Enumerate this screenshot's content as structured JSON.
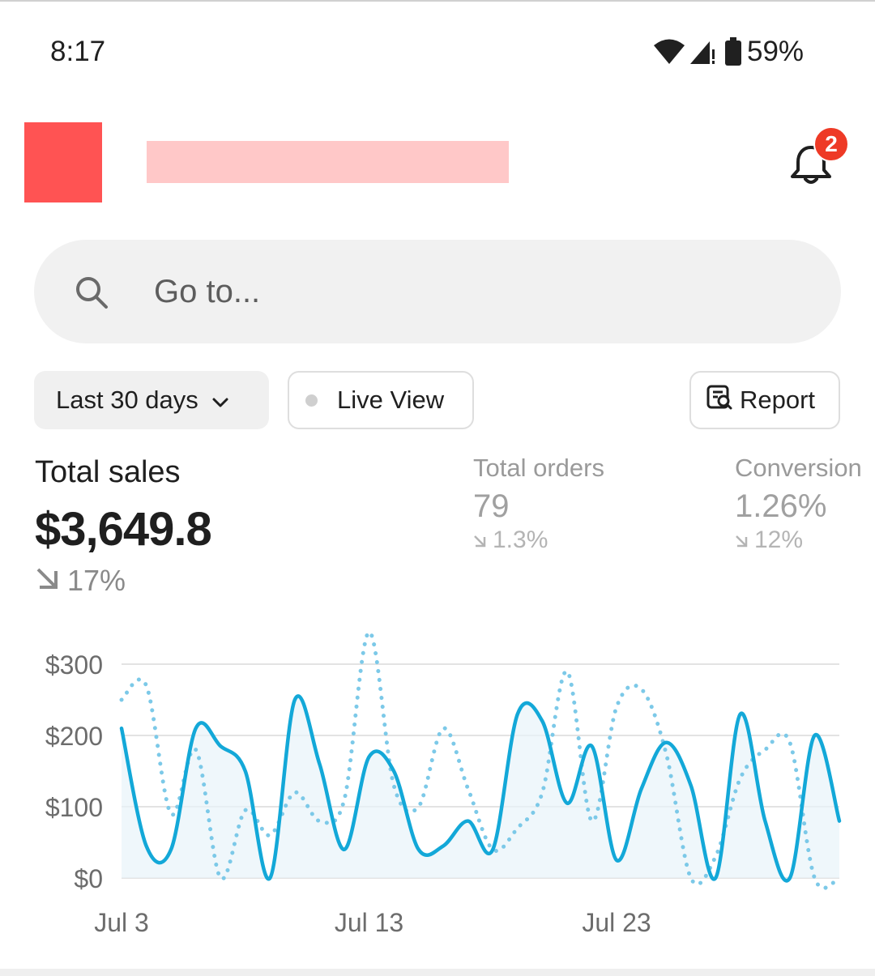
{
  "status_bar": {
    "time": "8:17",
    "battery": "59%",
    "icons": [
      "wifi-icon",
      "signal-icon",
      "battery-icon"
    ]
  },
  "header": {
    "notification_count": "2",
    "icons": [
      "bell-icon"
    ],
    "logo_color": "#ff5353",
    "store_name_redaction_color": "#ffc8c8"
  },
  "search": {
    "placeholder": "Go to..."
  },
  "filters": {
    "range_label": "Last 30 days",
    "live_label": "Live View",
    "report_label": "Report"
  },
  "metrics": {
    "total_sales": {
      "label": "Total sales",
      "value": "$3,649.8",
      "change": "17%"
    },
    "total_orders": {
      "label": "Total orders",
      "value": "79",
      "change": "1.3%"
    },
    "conversion": {
      "label": "Conversion",
      "value": "1.26%",
      "change": "12%"
    }
  },
  "colors": {
    "current_series": "#13a8d8",
    "previous_series": "#7cc9e8",
    "badge": "#ee3a26"
  },
  "chart_data": {
    "type": "line",
    "ylim": [
      0,
      300
    ],
    "y_ticks": [
      "$0",
      "$100",
      "$200",
      "$300"
    ],
    "y_tick_values": [
      0,
      100,
      200,
      300
    ],
    "x_ticks": [
      "Jul 3",
      "Jul 13",
      "Jul 23"
    ],
    "x_tick_values": [
      3,
      13,
      23
    ],
    "x": [
      3,
      4,
      5,
      6,
      7,
      8,
      9,
      10,
      11,
      12,
      13,
      14,
      15,
      16,
      17,
      18,
      19,
      20,
      21,
      22,
      23,
      24,
      25,
      26,
      27,
      28,
      29,
      30,
      31,
      32
    ],
    "series": [
      {
        "values": [
          210,
          45,
          40,
          210,
          185,
          150,
          0,
          250,
          160,
          40,
          170,
          150,
          40,
          45,
          80,
          40,
          230,
          220,
          105,
          185,
          25,
          125,
          190,
          130,
          0,
          230,
          80,
          0,
          200,
          80
        ]
      },
      {
        "values": [
          250,
          270,
          90,
          180,
          0,
          95,
          60,
          120,
          80,
          110,
          345,
          130,
          100,
          210,
          125,
          40,
          70,
          120,
          290,
          80,
          240,
          265,
          175,
          0,
          30,
          140,
          180,
          190,
          0,
          0
        ]
      }
    ]
  }
}
